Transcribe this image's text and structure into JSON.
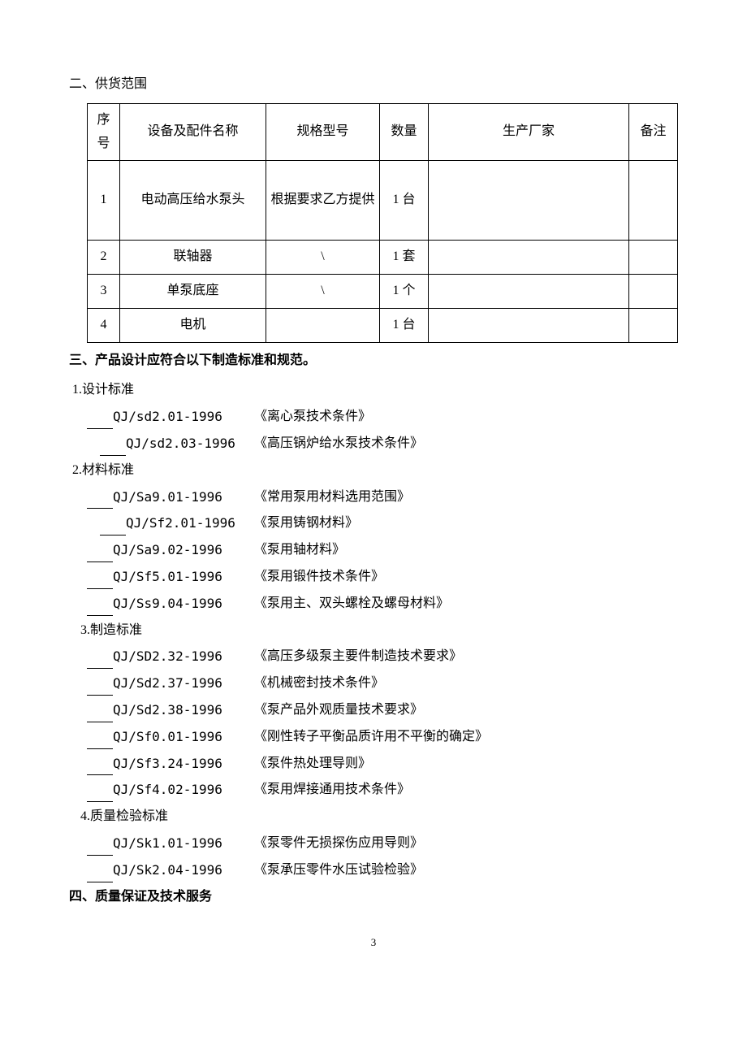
{
  "section2": {
    "heading": "二、供货范围",
    "table": {
      "headers": {
        "seq": "序号",
        "name": "设备及配件名称",
        "spec": "规格型号",
        "qty": "数量",
        "mfr": "生产厂家",
        "note": "备注"
      },
      "rows": [
        {
          "seq": "1",
          "name": "电动高压给水泵头",
          "spec": "根据要求乙方提供",
          "qty": "1 台",
          "mfr": "",
          "note": ""
        },
        {
          "seq": "2",
          "name": "联轴器",
          "spec": "\\",
          "qty": "1 套",
          "mfr": "",
          "note": ""
        },
        {
          "seq": "3",
          "name": "单泵底座",
          "spec": "\\",
          "qty": "1 个",
          "mfr": "",
          "note": ""
        },
        {
          "seq": "4",
          "name": "电机",
          "spec": "",
          "qty": "1 台",
          "mfr": "",
          "note": ""
        }
      ]
    }
  },
  "section3": {
    "heading": "三、产品设计应符合以下制造标准和规范。",
    "groups": [
      {
        "label": "1.设计标准",
        "items": [
          {
            "code": "QJ/sd2.01-1996",
            "title": "《离心泵技术条件》",
            "indent": 1
          },
          {
            "code": "QJ/sd2.03-1996",
            "title": "《高压锅炉给水泵技术条件》",
            "indent": 2
          }
        ]
      },
      {
        "label": "2.材料标准",
        "items": [
          {
            "code": "QJ/Sa9.01-1996",
            "title": "《常用泵用材料选用范围》",
            "indent": 1
          },
          {
            "code": "QJ/Sf2.01-1996",
            "title": "《泵用铸钢材料》",
            "indent": 2
          },
          {
            "code": "QJ/Sa9.02-1996",
            "title": "《泵用轴材料》",
            "indent": 1
          },
          {
            "code": "QJ/Sf5.01-1996",
            "title": "《泵用锻件技术条件》",
            "indent": 1
          },
          {
            "code": "QJ/Ss9.04-1996",
            "title": "《泵用主、双头螺栓及螺母材料》",
            "indent": 1
          }
        ]
      },
      {
        "label": "3.制造标准",
        "label_indent": true,
        "items": [
          {
            "code": "QJ/SD2.32-1996",
            "title": "《高压多级泵主要件制造技术要求》",
            "indent": 1
          },
          {
            "code": "QJ/Sd2.37-1996",
            "title": "《机械密封技术条件》",
            "indent": 1
          },
          {
            "code": "QJ/Sd2.38-1996",
            "title": "《泵产品外观质量技术要求》",
            "indent": 1
          },
          {
            "code": "QJ/Sf0.01-1996",
            "title": "《刚性转子平衡品质许用不平衡的确定》",
            "indent": 1
          },
          {
            "code": "QJ/Sf3.24-1996",
            "title": "《泵件热处理导则》",
            "indent": 1
          },
          {
            "code": "QJ/Sf4.02-1996",
            "title": "《泵用焊接通用技术条件》",
            "indent": 1
          }
        ]
      },
      {
        "label": "4.质量检验标准",
        "label_indent": true,
        "items": [
          {
            "code": "QJ/Sk1.01-1996",
            "title": "《泵零件无损探伤应用导则》",
            "indent": 1
          },
          {
            "code": "QJ/Sk2.04-1996",
            "title": "《泵承压零件水压试验检验》",
            "indent": 1
          }
        ]
      }
    ]
  },
  "section4": {
    "heading": "四、质量保证及技术服务"
  },
  "page_number": "3"
}
